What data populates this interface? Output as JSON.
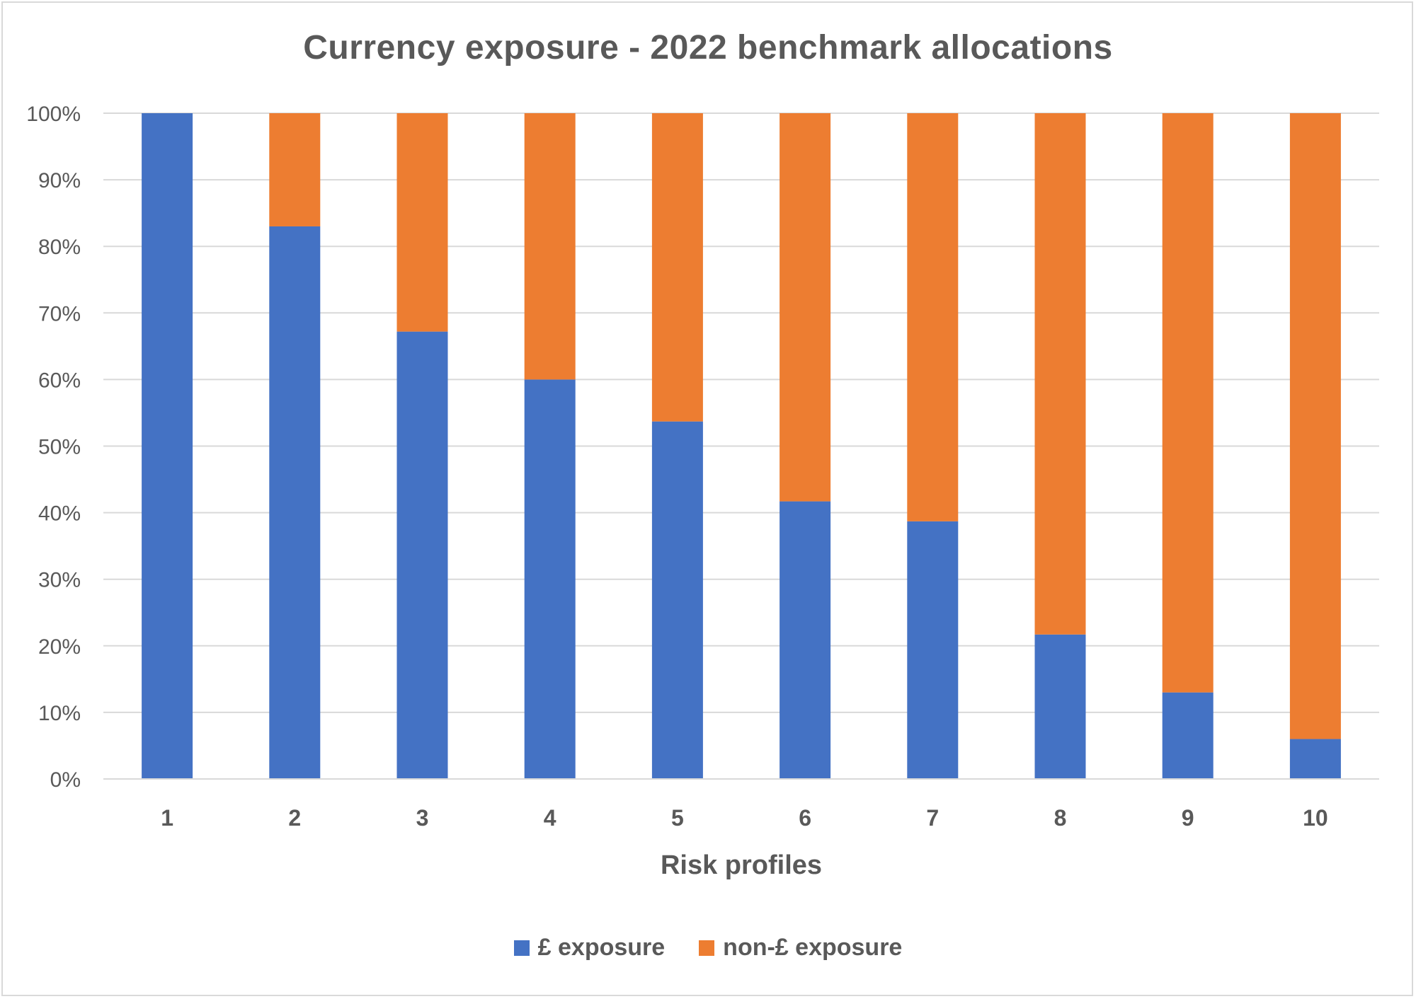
{
  "chart_data": {
    "type": "bar",
    "stacked": true,
    "title": "Currency exposure - 2022 benchmark allocations",
    "xlabel": "Risk profiles",
    "ylabel": "",
    "ylim": [
      0,
      100
    ],
    "yticks": [
      "0%",
      "10%",
      "20%",
      "30%",
      "40%",
      "50%",
      "60%",
      "70%",
      "80%",
      "90%",
      "100%"
    ],
    "grid": true,
    "legend_position": "bottom",
    "categories": [
      "1",
      "2",
      "3",
      "4",
      "5",
      "6",
      "7",
      "8",
      "9",
      "10"
    ],
    "series": [
      {
        "name": "£ exposure",
        "color": "#4472C4",
        "values": [
          100,
          83,
          67.2,
          60,
          53.7,
          41.7,
          38.7,
          21.7,
          13,
          6
        ]
      },
      {
        "name": "non-£ exposure",
        "color": "#ED7D31",
        "values": [
          0,
          17,
          32.8,
          40,
          46.3,
          58.3,
          61.3,
          78.3,
          87,
          94
        ]
      }
    ]
  }
}
